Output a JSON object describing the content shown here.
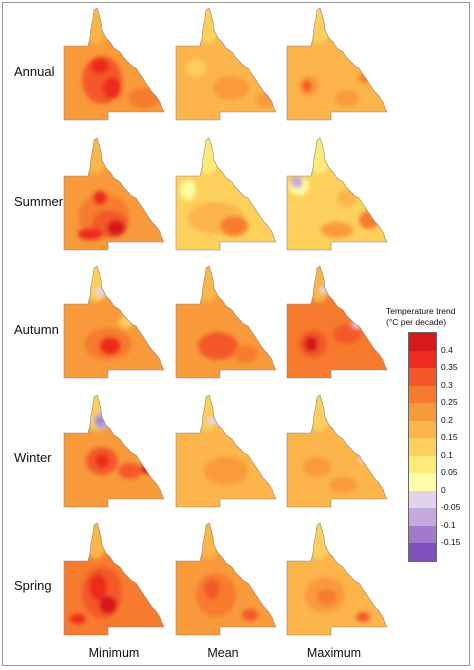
{
  "legend": {
    "title_line1": "Temperature trend",
    "title_line2": "(°C per decade)",
    "ticks": [
      "0.4",
      "0.35",
      "0.3",
      "0.25",
      "0.2",
      "0.15",
      "0.1",
      "0.05",
      "0",
      "-0.05",
      "-0.1",
      "-0.15"
    ],
    "colors": [
      "#d7191c",
      "#ed2a1f",
      "#f4582a",
      "#f77b2e",
      "#f99a3a",
      "#fbb54a",
      "#fdd05c",
      "#feea78",
      "#fefca6",
      "#e2d4ec",
      "#c3a9dc",
      "#a07acb",
      "#7e50bb"
    ]
  },
  "row_labels": [
    "Annual",
    "Summer",
    "Autumn",
    "Winter",
    "Spring"
  ],
  "col_labels": [
    "Minimum",
    "Mean",
    "Maximum"
  ],
  "maps": [
    {
      "season": "Annual",
      "stat": "Minimum",
      "base": "#f99a3a",
      "north": "#fbb54a",
      "hotspots": [
        {
          "cx": 38,
          "cy": 72,
          "rx": 20,
          "ry": 24,
          "fill": "#f4582a"
        },
        {
          "cx": 36,
          "cy": 58,
          "rx": 9,
          "ry": 8,
          "fill": "#ed2a1f"
        },
        {
          "cx": 48,
          "cy": 80,
          "rx": 9,
          "ry": 11,
          "fill": "#ed2a1f"
        },
        {
          "cx": 80,
          "cy": 90,
          "rx": 16,
          "ry": 10,
          "fill": "#f77b2e"
        }
      ]
    },
    {
      "season": "Annual",
      "stat": "Mean",
      "base": "#fbb54a",
      "north": "#fdd05c",
      "hotspots": [
        {
          "cx": 55,
          "cy": 80,
          "rx": 18,
          "ry": 12,
          "fill": "#f99a3a"
        },
        {
          "cx": 90,
          "cy": 92,
          "rx": 10,
          "ry": 8,
          "fill": "#f99a3a"
        },
        {
          "cx": 20,
          "cy": 60,
          "rx": 10,
          "ry": 8,
          "fill": "#fdd05c"
        }
      ]
    },
    {
      "season": "Annual",
      "stat": "Maximum",
      "base": "#fbb54a",
      "north": "#fdd05c",
      "hotspots": [
        {
          "cx": 22,
          "cy": 78,
          "rx": 10,
          "ry": 10,
          "fill": "#f99a3a"
        },
        {
          "cx": 20,
          "cy": 78,
          "rx": 5,
          "ry": 6,
          "fill": "#f4582a"
        },
        {
          "cx": 78,
          "cy": 70,
          "rx": 6,
          "ry": 5,
          "fill": "#f77b2e"
        },
        {
          "cx": 60,
          "cy": 90,
          "rx": 12,
          "ry": 8,
          "fill": "#f99a3a"
        }
      ]
    },
    {
      "season": "Summer",
      "stat": "Minimum",
      "base": "#f99a3a",
      "north": "#fbb54a",
      "hotspots": [
        {
          "cx": 40,
          "cy": 78,
          "rx": 26,
          "ry": 22,
          "fill": "#f77b2e"
        },
        {
          "cx": 36,
          "cy": 60,
          "rx": 7,
          "ry": 7,
          "fill": "#ed2a1f"
        },
        {
          "cx": 46,
          "cy": 86,
          "rx": 18,
          "ry": 14,
          "fill": "#f4582a"
        },
        {
          "cx": 52,
          "cy": 90,
          "rx": 9,
          "ry": 8,
          "fill": "#d7191c"
        },
        {
          "cx": 26,
          "cy": 96,
          "rx": 12,
          "ry": 6,
          "fill": "#ed2a1f"
        }
      ]
    },
    {
      "season": "Summer",
      "stat": "Mean",
      "base": "#fdd05c",
      "north": "#feea78",
      "hotspots": [
        {
          "cx": 40,
          "cy": 80,
          "rx": 28,
          "ry": 16,
          "fill": "#fbb54a"
        },
        {
          "cx": 58,
          "cy": 88,
          "rx": 14,
          "ry": 10,
          "fill": "#f77b2e"
        },
        {
          "cx": 12,
          "cy": 52,
          "rx": 8,
          "ry": 10,
          "fill": "#fefca6"
        }
      ]
    },
    {
      "season": "Summer",
      "stat": "Maximum",
      "base": "#fdd05c",
      "north": "#feea78",
      "hotspots": [
        {
          "cx": 12,
          "cy": 48,
          "rx": 10,
          "ry": 9,
          "fill": "#fefca6"
        },
        {
          "cx": 10,
          "cy": 44,
          "rx": 6,
          "ry": 6,
          "fill": "#c3a9dc"
        },
        {
          "cx": 60,
          "cy": 60,
          "rx": 10,
          "ry": 9,
          "fill": "#fbb54a"
        },
        {
          "cx": 82,
          "cy": 82,
          "rx": 10,
          "ry": 9,
          "fill": "#f77b2e"
        },
        {
          "cx": 50,
          "cy": 92,
          "rx": 16,
          "ry": 8,
          "fill": "#f99a3a"
        }
      ]
    },
    {
      "season": "Autumn",
      "stat": "Minimum",
      "base": "#f99a3a",
      "north": "#fdd05c",
      "hotspots": [
        {
          "cx": 44,
          "cy": 78,
          "rx": 24,
          "ry": 16,
          "fill": "#f77b2e"
        },
        {
          "cx": 46,
          "cy": 80,
          "rx": 11,
          "ry": 9,
          "fill": "#ed2a1f"
        },
        {
          "cx": 36,
          "cy": 26,
          "rx": 5,
          "ry": 5,
          "fill": "#e2d4ec"
        },
        {
          "cx": 62,
          "cy": 56,
          "rx": 7,
          "ry": 6,
          "fill": "#fdd05c"
        }
      ]
    },
    {
      "season": "Autumn",
      "stat": "Mean",
      "base": "#f99a3a",
      "north": "#fbb54a",
      "hotspots": [
        {
          "cx": 42,
          "cy": 80,
          "rx": 20,
          "ry": 14,
          "fill": "#f4582a"
        },
        {
          "cx": 70,
          "cy": 88,
          "rx": 12,
          "ry": 9,
          "fill": "#f77b2e"
        }
      ]
    },
    {
      "season": "Autumn",
      "stat": "Maximum",
      "base": "#f77b2e",
      "north": "#fbb54a",
      "hotspots": [
        {
          "cx": 26,
          "cy": 78,
          "rx": 14,
          "ry": 14,
          "fill": "#f4582a"
        },
        {
          "cx": 24,
          "cy": 78,
          "rx": 7,
          "ry": 8,
          "fill": "#d7191c"
        },
        {
          "cx": 60,
          "cy": 68,
          "rx": 14,
          "ry": 10,
          "fill": "#f4582a"
        },
        {
          "cx": 36,
          "cy": 24,
          "rx": 4,
          "ry": 4,
          "fill": "#e2d4ec"
        },
        {
          "cx": 70,
          "cy": 58,
          "rx": 5,
          "ry": 4,
          "fill": "#e2d4ec"
        }
      ]
    },
    {
      "season": "Winter",
      "stat": "Minimum",
      "base": "#f99a3a",
      "north": "#fdd05c",
      "hotspots": [
        {
          "cx": 38,
          "cy": 66,
          "rx": 16,
          "ry": 14,
          "fill": "#f4582a"
        },
        {
          "cx": 38,
          "cy": 66,
          "rx": 7,
          "ry": 7,
          "fill": "#ed2a1f"
        },
        {
          "cx": 66,
          "cy": 76,
          "rx": 12,
          "ry": 8,
          "fill": "#f4582a"
        },
        {
          "cx": 82,
          "cy": 74,
          "rx": 5,
          "ry": 5,
          "fill": "#d7191c"
        },
        {
          "cx": 38,
          "cy": 26,
          "rx": 8,
          "ry": 9,
          "fill": "#c3a9dc"
        },
        {
          "cx": 36,
          "cy": 26,
          "rx": 4,
          "ry": 4,
          "fill": "#a07acb"
        }
      ]
    },
    {
      "season": "Winter",
      "stat": "Mean",
      "base": "#fbb54a",
      "north": "#fdd05c",
      "hotspots": [
        {
          "cx": 50,
          "cy": 76,
          "rx": 22,
          "ry": 14,
          "fill": "#f99a3a"
        },
        {
          "cx": 36,
          "cy": 26,
          "rx": 5,
          "ry": 4,
          "fill": "#e2d4ec"
        }
      ]
    },
    {
      "season": "Winter",
      "stat": "Maximum",
      "base": "#fbb54a",
      "north": "#fdd05c",
      "hotspots": [
        {
          "cx": 30,
          "cy": 72,
          "rx": 14,
          "ry": 10,
          "fill": "#f99a3a"
        },
        {
          "cx": 76,
          "cy": 64,
          "rx": 4,
          "ry": 4,
          "fill": "#e2d4ec"
        },
        {
          "cx": 56,
          "cy": 90,
          "rx": 14,
          "ry": 8,
          "fill": "#f99a3a"
        }
      ]
    },
    {
      "season": "Spring",
      "stat": "Minimum",
      "base": "#f77b2e",
      "north": "#fbb54a",
      "hotspots": [
        {
          "cx": 38,
          "cy": 70,
          "rx": 20,
          "ry": 26,
          "fill": "#f4582a"
        },
        {
          "cx": 34,
          "cy": 64,
          "rx": 9,
          "ry": 13,
          "fill": "#ed2a1f"
        },
        {
          "cx": 44,
          "cy": 82,
          "rx": 9,
          "ry": 9,
          "fill": "#d7191c"
        },
        {
          "cx": 14,
          "cy": 96,
          "rx": 8,
          "ry": 5,
          "fill": "#ed2a1f"
        }
      ]
    },
    {
      "season": "Spring",
      "stat": "Mean",
      "base": "#f99a3a",
      "north": "#fbb54a",
      "hotspots": [
        {
          "cx": 40,
          "cy": 72,
          "rx": 20,
          "ry": 22,
          "fill": "#f77b2e"
        },
        {
          "cx": 36,
          "cy": 66,
          "rx": 8,
          "ry": 10,
          "fill": "#f4582a"
        },
        {
          "cx": 74,
          "cy": 92,
          "rx": 8,
          "ry": 6,
          "fill": "#f4582a"
        }
      ]
    },
    {
      "season": "Spring",
      "stat": "Maximum",
      "base": "#fbb54a",
      "north": "#fdd05c",
      "hotspots": [
        {
          "cx": 38,
          "cy": 72,
          "rx": 20,
          "ry": 18,
          "fill": "#f99a3a"
        },
        {
          "cx": 40,
          "cy": 74,
          "rx": 10,
          "ry": 8,
          "fill": "#f77b2e"
        },
        {
          "cx": 76,
          "cy": 94,
          "rx": 7,
          "ry": 5,
          "fill": "#f4582a"
        }
      ]
    }
  ]
}
